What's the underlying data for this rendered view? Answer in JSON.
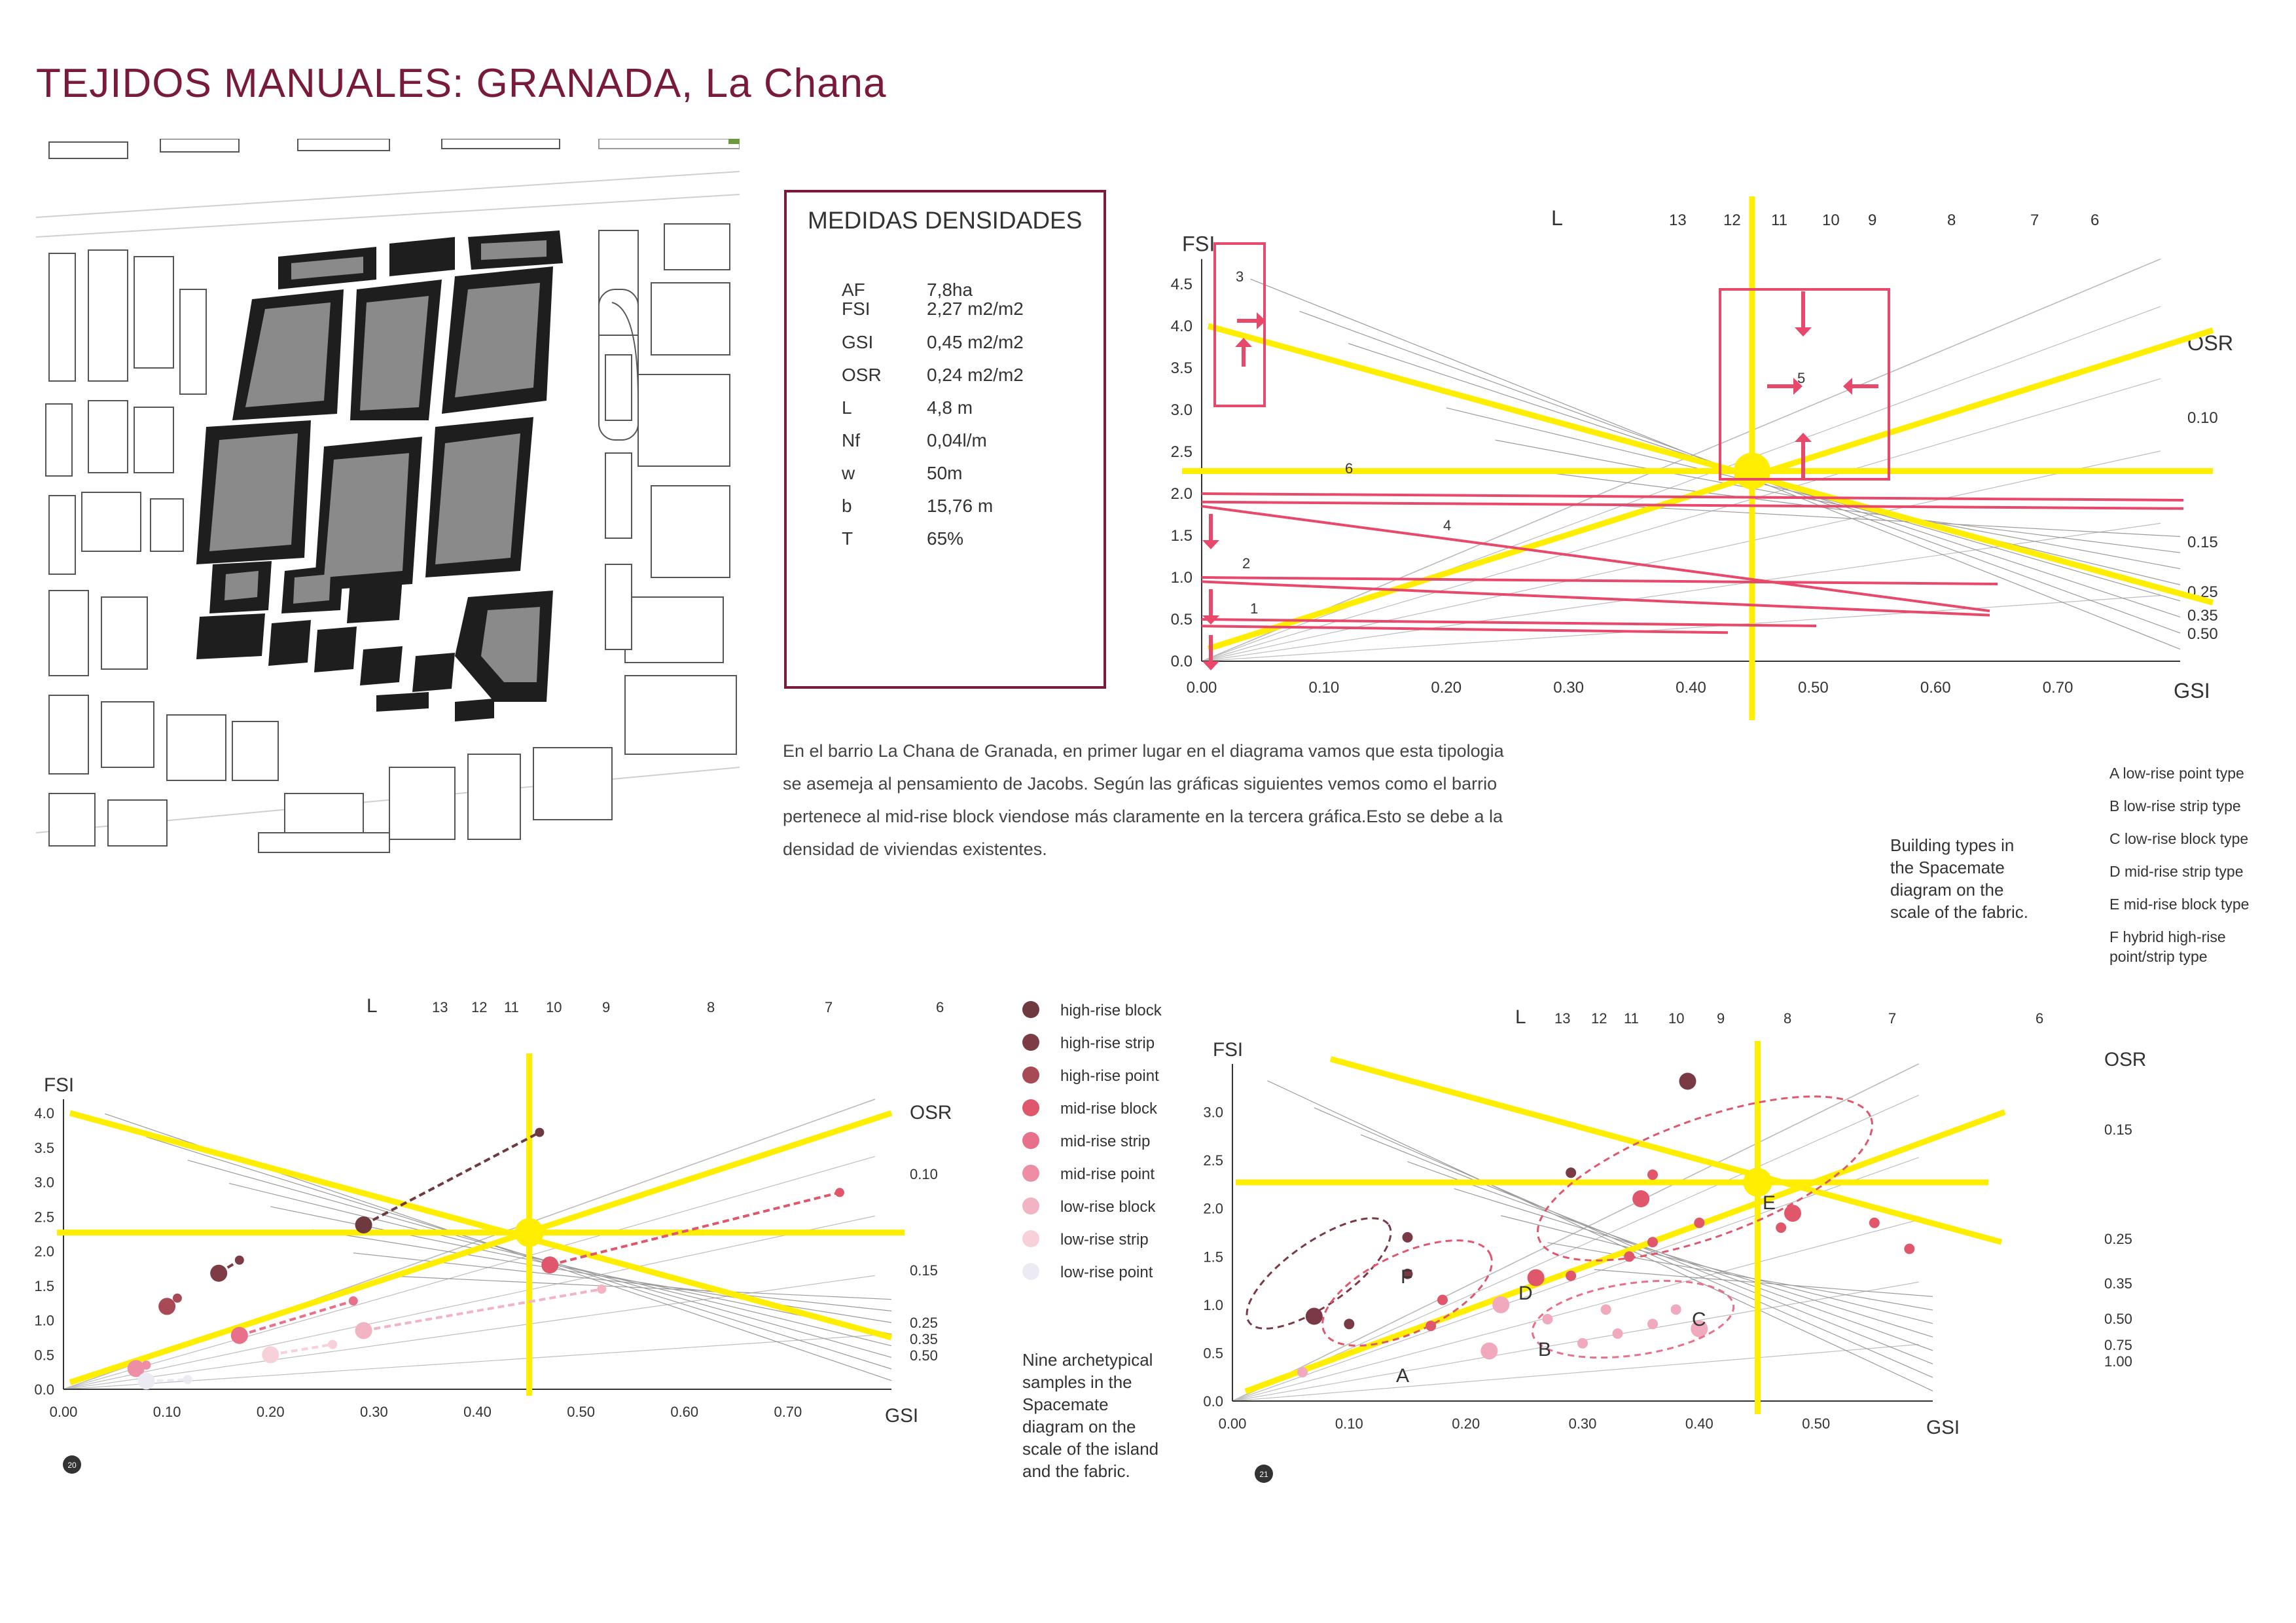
{
  "title": "TEJIDOS MANUALES: GRANADA, La Chana",
  "measures": {
    "heading": "MEDIDAS DENSIDADES",
    "rows": [
      {
        "k": "AF",
        "v": "7,8ha"
      },
      {
        "k": "FSI",
        "v": "2,27 m2/m2"
      },
      {
        "k": "GSI",
        "v": "0,45 m2/m2"
      },
      {
        "k": "OSR",
        "v": "0,24 m2/m2"
      },
      {
        "k": "L",
        "v": "4,8 m"
      },
      {
        "k": "Nf",
        "v": "0,04l/m"
      },
      {
        "k": "w",
        "v": "50m"
      },
      {
        "k": "b",
        "v": "15,76 m"
      },
      {
        "k": "T",
        "v": "65%"
      }
    ]
  },
  "paragraph": "En el barrio  La Chana de Granada, en primer lugar en el diagrama vamos que esta tipologia se asemeja al pensamiento de Jacobs. Según las gráficas siguientes vemos como el barrio pertenece al  mid-rise block viendose más claramente en la tercera gráfica.Esto se debe a la densidad de viviendas existentes.",
  "building_types": {
    "caption": [
      "Building types in",
      "the Spacemate",
      "diagram on the",
      "scale of the fabric."
    ],
    "items": [
      "A  low-rise point type",
      "B  low-rise strip type",
      "C  low-rise block type",
      "D  mid-rise strip type",
      "E  mid-rise block type",
      "F  hybrid high-rise",
      "point/strip type"
    ]
  },
  "samples_legend": {
    "items": [
      {
        "label": "high-rise block",
        "color": "#6e3a40"
      },
      {
        "label": "high-rise strip",
        "color": "#7d3b45"
      },
      {
        "label": "high-rise point",
        "color": "#a84a56"
      },
      {
        "label": "mid-rise block",
        "color": "#e0566b"
      },
      {
        "label": "mid-rise strip",
        "color": "#e8708a"
      },
      {
        "label": "mid-rise point",
        "color": "#ee8ea4"
      },
      {
        "label": "low-rise block",
        "color": "#f2b3c3"
      },
      {
        "label": "low-rise strip",
        "color": "#f7d0da"
      },
      {
        "label": "low-rise point",
        "color": "#ecebf4"
      }
    ],
    "caption": [
      "Nine archetypical",
      "samples in the",
      "Spacemate",
      "diagram on the",
      "scale of the island",
      "and the fabric."
    ]
  },
  "chart_data": [
    {
      "type": "scatter",
      "title": "",
      "xlabel": "GSI",
      "ylabel": "FSI",
      "xlim": [
        0,
        0.8
      ],
      "ylim": [
        0,
        4.8
      ],
      "x_ticks": [
        "0.00",
        "0.10",
        "0.20",
        "0.30",
        "0.40",
        "0.50",
        "0.60",
        "0.70"
      ],
      "y_ticks": [
        "0.0",
        "0.5",
        "1.0",
        "1.5",
        "2.0",
        "2.5",
        "3.0",
        "3.5",
        "4.0",
        "4.5"
      ],
      "L_label": "L",
      "L_values": [
        "13",
        "12",
        "11",
        "10",
        "9",
        "8",
        "7",
        "6"
      ],
      "OSR_label": "OSR",
      "OSR_values": [
        "0.10",
        "0.15",
        "0.25",
        "0.35",
        "0.50"
      ],
      "marker": {
        "GSI": 0.45,
        "FSI": 2.27
      },
      "zone_labels": [
        "1",
        "2",
        "3",
        "4",
        "5",
        "6"
      ]
    },
    {
      "type": "scatter",
      "title": "",
      "xlabel": "GSI",
      "ylabel": "FSI",
      "xlim": [
        0,
        0.8
      ],
      "ylim": [
        0,
        4.2
      ],
      "x_ticks": [
        "0.00",
        "0.10",
        "0.20",
        "0.30",
        "0.40",
        "0.50",
        "0.60",
        "0.70"
      ],
      "y_ticks": [
        "0.0",
        "0.5",
        "1.0",
        "1.5",
        "2.0",
        "2.5",
        "3.0",
        "3.5",
        "4.0"
      ],
      "L_label": "L",
      "L_values": [
        "13",
        "12",
        "11",
        "10",
        "9",
        "8",
        "7",
        "6"
      ],
      "OSR_label": "OSR",
      "OSR_values": [
        "0.10",
        "0.15",
        "0.25",
        "0.35",
        "0.50"
      ],
      "marker": {
        "GSI": 0.45,
        "FSI": 2.27
      },
      "page_number": "20",
      "series": [
        {
          "name": "high-rise block",
          "points": [
            [
              0.29,
              2.38
            ],
            [
              0.46,
              3.72
            ]
          ]
        },
        {
          "name": "high-rise strip",
          "points": [
            [
              0.15,
              1.68
            ],
            [
              0.17,
              1.87
            ]
          ]
        },
        {
          "name": "high-rise point",
          "points": [
            [
              0.1,
              1.2
            ],
            [
              0.11,
              1.32
            ]
          ]
        },
        {
          "name": "mid-rise block",
          "points": [
            [
              0.47,
              1.8
            ],
            [
              0.75,
              2.85
            ]
          ]
        },
        {
          "name": "mid-rise strip",
          "points": [
            [
              0.17,
              0.78
            ],
            [
              0.28,
              1.28
            ]
          ]
        },
        {
          "name": "mid-rise point",
          "points": [
            [
              0.07,
              0.3
            ],
            [
              0.08,
              0.35
            ]
          ]
        },
        {
          "name": "low-rise block",
          "points": [
            [
              0.29,
              0.85
            ],
            [
              0.52,
              1.45
            ]
          ]
        },
        {
          "name": "low-rise strip",
          "points": [
            [
              0.2,
              0.5
            ],
            [
              0.26,
              0.65
            ]
          ]
        },
        {
          "name": "low-rise point",
          "points": [
            [
              0.08,
              0.12
            ],
            [
              0.12,
              0.14
            ]
          ]
        }
      ]
    },
    {
      "type": "scatter",
      "title": "",
      "xlabel": "GSI",
      "ylabel": "FSI",
      "xlim": [
        0,
        0.6
      ],
      "ylim": [
        0,
        3.5
      ],
      "x_ticks": [
        "0.00",
        "0.10",
        "0.20",
        "0.30",
        "0.40",
        "0.50"
      ],
      "y_ticks": [
        "0.0",
        "0.5",
        "1.0",
        "1.5",
        "2.0",
        "2.5",
        "3.0"
      ],
      "L_label": "L",
      "L_values": [
        "13",
        "12",
        "11",
        "10",
        "9",
        "8",
        "7",
        "6"
      ],
      "OSR_label": "OSR",
      "OSR_values": [
        "0.15",
        "0.25",
        "0.35",
        "0.50",
        "0.75",
        "1.00"
      ],
      "marker": {
        "GSI": 0.45,
        "FSI": 2.27
      },
      "page_number": "21",
      "group_labels": [
        "A",
        "B",
        "C",
        "D",
        "E",
        "F"
      ],
      "points": [
        [
          0.39,
          3.32
        ],
        [
          0.29,
          2.37
        ],
        [
          0.15,
          1.7
        ],
        [
          0.15,
          1.32
        ],
        [
          0.07,
          0.88
        ],
        [
          0.1,
          0.8
        ],
        [
          0.17,
          0.78
        ],
        [
          0.18,
          1.05
        ],
        [
          0.26,
          1.28
        ],
        [
          0.29,
          1.3
        ],
        [
          0.34,
          1.5
        ],
        [
          0.36,
          1.65
        ],
        [
          0.35,
          2.1
        ],
        [
          0.36,
          2.35
        ],
        [
          0.4,
          1.85
        ],
        [
          0.47,
          1.8
        ],
        [
          0.48,
          1.95
        ],
        [
          0.55,
          1.85
        ],
        [
          0.58,
          1.58
        ],
        [
          0.06,
          0.3
        ],
        [
          0.22,
          0.52
        ],
        [
          0.3,
          0.6
        ],
        [
          0.33,
          0.7
        ],
        [
          0.38,
          0.95
        ],
        [
          0.23,
          1.0
        ],
        [
          0.27,
          0.85
        ],
        [
          0.32,
          0.95
        ],
        [
          0.36,
          0.8
        ],
        [
          0.4,
          0.75
        ]
      ]
    }
  ],
  "colors": {
    "accent": "#7a1a3a",
    "highlight": "#ffee00",
    "red": "#e8496b"
  }
}
